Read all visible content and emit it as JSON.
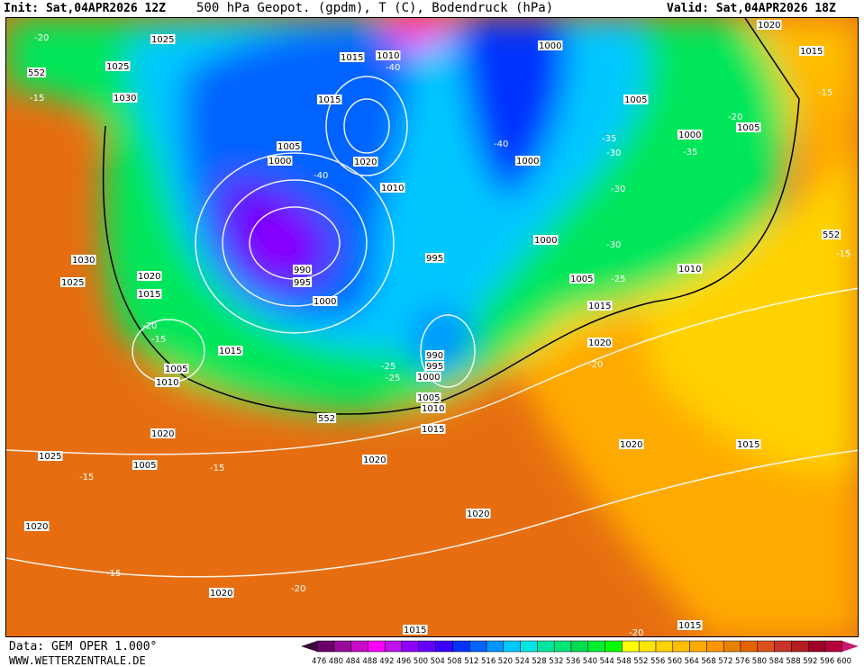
{
  "header": {
    "init": "Init: Sat,04APR2026 12Z",
    "title": "500 hPa Geopot. (gpdm), T (C), Bodendruck (hPa)",
    "valid": "Valid: Sat,04APR2026 18Z"
  },
  "footer": {
    "data_source": "Data: GEM OPER 1.000°",
    "website": "WWW.WETTERZENTRALE.DE"
  },
  "colorbar": {
    "ticks": [
      476,
      480,
      484,
      488,
      492,
      496,
      500,
      504,
      508,
      512,
      516,
      520,
      524,
      528,
      532,
      536,
      540,
      544,
      548,
      552,
      556,
      560,
      564,
      568,
      572,
      576,
      580,
      584,
      588,
      592,
      596,
      600
    ],
    "colors": [
      "#3a0a3a",
      "#6a006a",
      "#9a0a9a",
      "#c80ac8",
      "#ff00ff",
      "#c010f0",
      "#9000ff",
      "#6400ff",
      "#3c00ff",
      "#0032ff",
      "#0064ff",
      "#0096ff",
      "#00c8ff",
      "#00e6e6",
      "#00e6a0",
      "#00e678",
      "#00dc50",
      "#00f030",
      "#00ff00",
      "#ffff00",
      "#ffe600",
      "#ffd200",
      "#ffbe00",
      "#ffaa00",
      "#ff9600",
      "#e68200",
      "#e66400",
      "#dc5020",
      "#c83228",
      "#b41e1e",
      "#a00028",
      "#b4003c",
      "#c8186e"
    ]
  },
  "map_labels": [
    "1025",
    "1025",
    "1030",
    "1030",
    "1025",
    "1020",
    "1015",
    "1005",
    "1010",
    "1020",
    "1025",
    "1020",
    "1015",
    "1015",
    "1010",
    "1005",
    "1000",
    "1020",
    "1010",
    "990",
    "995",
    "1000",
    "1015",
    "995",
    "990",
    "995",
    "1000",
    "1005",
    "1010",
    "1015",
    "1000",
    "1000",
    "1005",
    "1000",
    "1005",
    "1000",
    "1010",
    "1005",
    "1015",
    "1020",
    "1020",
    "1015",
    "1020",
    "1020",
    "1015",
    "1015",
    "1020",
    "1015",
    "1005",
    "1020",
    "-20",
    "-15",
    "-40",
    "-40",
    "-40",
    "-35",
    "-30",
    "-30",
    "-30",
    "-25",
    "-25",
    "-20",
    "-15",
    "-20",
    "-15",
    "-15",
    "-15",
    "-15",
    "-20",
    "-20",
    "-35",
    "-25",
    "-20",
    "552",
    "552",
    "552",
    "-15"
  ]
}
